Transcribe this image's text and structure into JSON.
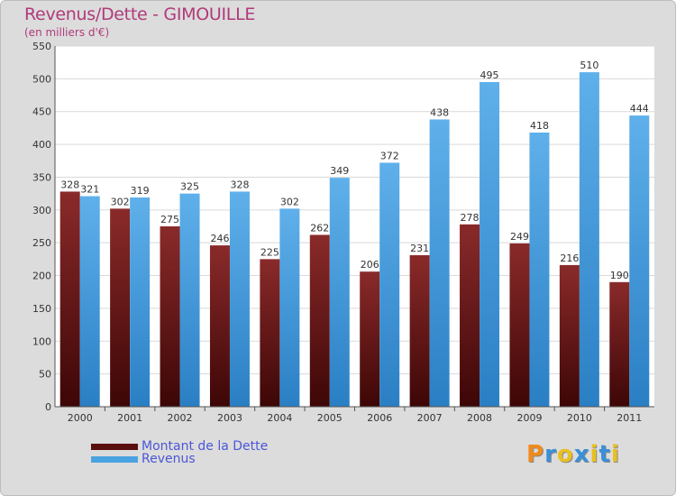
{
  "header": {
    "title": "Revenus/Dette - GIMOUILLE",
    "subtitle": "(en milliers d'€)"
  },
  "chart_data": {
    "type": "bar",
    "categories": [
      "2000",
      "2001",
      "2002",
      "2003",
      "2004",
      "2005",
      "2006",
      "2007",
      "2008",
      "2009",
      "2010",
      "2011"
    ],
    "series": [
      {
        "name": "Montant de la Dette",
        "values": [
          328,
          302,
          275,
          246,
          225,
          262,
          206,
          231,
          278,
          249,
          216,
          190
        ],
        "color": "#7a1f1f"
      },
      {
        "name": "Revenus",
        "values": [
          321,
          319,
          325,
          328,
          302,
          349,
          372,
          438,
          495,
          418,
          510,
          444
        ],
        "color": "#4aa3e0"
      }
    ],
    "ylim": [
      0,
      550
    ],
    "yticks": [
      0,
      50,
      100,
      150,
      200,
      250,
      300,
      350,
      400,
      450,
      500,
      550
    ],
    "grid": true,
    "legend": "bottom-left"
  },
  "legend": {
    "items": [
      "Montant de la Dette",
      "Revenus"
    ],
    "colors": [
      "#5a0f0f",
      "#4aa3e0"
    ]
  },
  "brand": {
    "letters": [
      "P",
      "r",
      "o",
      "x",
      "i",
      "t",
      "i"
    ],
    "colors": [
      "#f08a1c",
      "#3a8fd8",
      "#e8c020",
      "#3a8fd8",
      "#e8c020",
      "#3a8fd8",
      "#e8c020"
    ]
  }
}
